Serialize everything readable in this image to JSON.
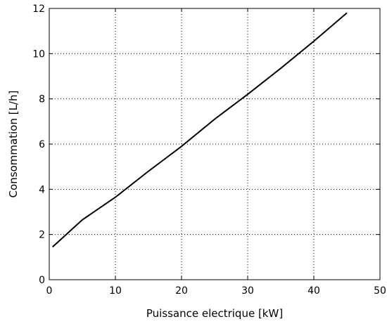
{
  "chart_data": {
    "type": "line",
    "title": "",
    "xlabel": "Puissance electrique [kW]",
    "ylabel": "Consommation [L/h]",
    "xlim": [
      0,
      50
    ],
    "ylim": [
      0,
      12
    ],
    "xticks": [
      0,
      10,
      20,
      30,
      40,
      50
    ],
    "yticks": [
      0,
      2,
      4,
      6,
      8,
      10,
      12
    ],
    "xtick_labels": [
      "0",
      "10",
      "20",
      "30",
      "40",
      "50"
    ],
    "ytick_labels": [
      "0",
      "2",
      "4",
      "6",
      "8",
      "10",
      "12"
    ],
    "grid": true,
    "grid_style": "dotted",
    "legend": "none",
    "colors": {
      "line": "#000000",
      "grid": "#000000",
      "background": "#ffffff"
    },
    "series": [
      {
        "x": [
          0.5,
          5,
          10,
          15,
          20,
          25,
          30,
          35,
          40,
          45
        ],
        "y": [
          1.45,
          2.65,
          3.65,
          4.8,
          5.9,
          7.1,
          8.2,
          9.35,
          10.55,
          11.8
        ]
      }
    ]
  }
}
